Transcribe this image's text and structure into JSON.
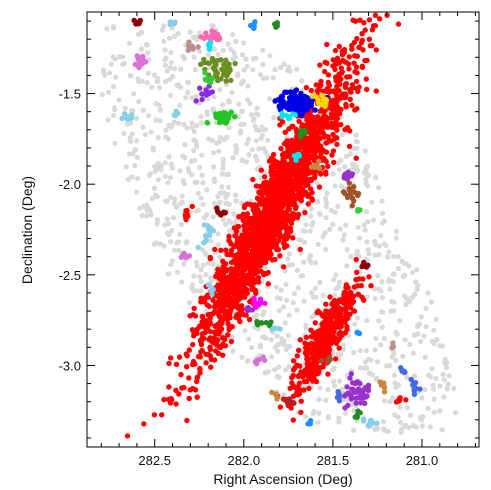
{
  "chart_data": {
    "type": "scatter",
    "title": "",
    "xlabel": "Right Ascension (Deg)",
    "ylabel": "Declination (Deg)",
    "xlim": [
      282.88,
      280.68
    ],
    "ylim": [
      -3.45,
      -1.05
    ],
    "x_ticks": [
      "282.5",
      "282.0",
      "281.5",
      "281.0"
    ],
    "x_tick_values": [
      282.5,
      282.0,
      281.5,
      281.0
    ],
    "y_ticks": [
      "-1.5",
      "-2.0",
      "-2.5",
      "-3.0"
    ],
    "y_tick_values": [
      -1.5,
      -2.0,
      -2.5,
      -3.0
    ],
    "grid": false,
    "legend": "none",
    "background_region": {
      "color": "#d9d9d9",
      "polygon": [
        [
          282.78,
          -1.12
        ],
        [
          282.2,
          -1.1
        ],
        [
          281.7,
          -1.35
        ],
        [
          281.4,
          -1.65
        ],
        [
          281.2,
          -2.05
        ],
        [
          281.02,
          -2.45
        ],
        [
          280.85,
          -2.9
        ],
        [
          280.78,
          -3.35
        ],
        [
          281.25,
          -3.4
        ],
        [
          281.65,
          -3.3
        ],
        [
          282.05,
          -2.95
        ],
        [
          282.4,
          -2.55
        ],
        [
          282.62,
          -2.1
        ],
        [
          282.8,
          -1.55
        ]
      ]
    },
    "series": [
      {
        "color": "#ff0000",
        "center": [
          281.82,
          -2.12
        ],
        "extent": [
          0.3,
          0.88
        ],
        "angle_deg": 62,
        "count": 1900
      },
      {
        "color": "#ff0000",
        "center": [
          281.55,
          -2.86
        ],
        "extent": [
          0.2,
          0.32
        ],
        "angle_deg": 66,
        "count": 420
      },
      {
        "color": "#0000e6",
        "center": [
          281.7,
          -1.55
        ],
        "extent": [
          0.13,
          0.06
        ],
        "angle_deg": 15,
        "count": 110
      },
      {
        "color": "#6b8e23",
        "center": [
          282.15,
          -1.35
        ],
        "extent": [
          0.07,
          0.07
        ],
        "angle_deg": 0,
        "count": 40
      },
      {
        "color": "#22c522",
        "center": [
          282.12,
          -1.63
        ],
        "extent": [
          0.06,
          0.035
        ],
        "angle_deg": 0,
        "count": 30
      },
      {
        "color": "#ff69b4",
        "center": [
          282.16,
          -1.19
        ],
        "extent": [
          0.06,
          0.03
        ],
        "angle_deg": 0,
        "count": 22
      },
      {
        "color": "#8a2be2",
        "center": [
          282.22,
          -1.5
        ],
        "extent": [
          0.035,
          0.04
        ],
        "angle_deg": 0,
        "count": 14
      },
      {
        "color": "#ffd700",
        "center": [
          281.56,
          -1.54
        ],
        "extent": [
          0.03,
          0.03
        ],
        "angle_deg": 0,
        "count": 12
      },
      {
        "color": "#00e5ee",
        "center": [
          281.75,
          -1.62
        ],
        "extent": [
          0.04,
          0.02
        ],
        "angle_deg": 0,
        "count": 8
      },
      {
        "color": "#00e5ee",
        "center": [
          281.7,
          -1.85
        ],
        "extent": [
          0.02,
          0.03
        ],
        "angle_deg": 0,
        "count": 6
      },
      {
        "color": "#a0522d",
        "center": [
          281.4,
          -2.06
        ],
        "extent": [
          0.04,
          0.05
        ],
        "angle_deg": 0,
        "count": 18
      },
      {
        "color": "#9932cc",
        "center": [
          281.42,
          -1.95
        ],
        "extent": [
          0.03,
          0.03
        ],
        "angle_deg": 0,
        "count": 10
      },
      {
        "color": "#cd853f",
        "center": [
          281.57,
          -1.9
        ],
        "extent": [
          0.035,
          0.02
        ],
        "angle_deg": 0,
        "count": 8
      },
      {
        "color": "#228b22",
        "center": [
          281.67,
          -1.72
        ],
        "extent": [
          0.02,
          0.03
        ],
        "angle_deg": 0,
        "count": 8
      },
      {
        "color": "#228b22",
        "center": [
          281.82,
          -1.12
        ],
        "extent": [
          0.015,
          0.02
        ],
        "angle_deg": 0,
        "count": 6
      },
      {
        "color": "#1e90ff",
        "center": [
          281.95,
          -1.13
        ],
        "extent": [
          0.02,
          0.025
        ],
        "angle_deg": 0,
        "count": 8
      },
      {
        "color": "#87ceeb",
        "center": [
          282.4,
          -1.11
        ],
        "extent": [
          0.03,
          0.015
        ],
        "angle_deg": 0,
        "count": 8
      },
      {
        "color": "#8b0000",
        "center": [
          282.6,
          -1.12
        ],
        "extent": [
          0.025,
          0.025
        ],
        "angle_deg": 0,
        "count": 8
      },
      {
        "color": "#da70d6",
        "center": [
          282.58,
          -1.32
        ],
        "extent": [
          0.03,
          0.04
        ],
        "angle_deg": 0,
        "count": 14
      },
      {
        "color": "#87ceeb",
        "center": [
          282.65,
          -1.63
        ],
        "extent": [
          0.03,
          0.025
        ],
        "angle_deg": 0,
        "count": 8
      },
      {
        "color": "#87ceeb",
        "center": [
          282.38,
          -1.62
        ],
        "extent": [
          0.015,
          0.015
        ],
        "angle_deg": 0,
        "count": 5
      },
      {
        "color": "#bc8f8f",
        "center": [
          282.28,
          -1.24
        ],
        "extent": [
          0.03,
          0.02
        ],
        "angle_deg": 0,
        "count": 7
      },
      {
        "color": "#00e5ee",
        "center": [
          282.19,
          -1.23
        ],
        "extent": [
          0.01,
          0.03
        ],
        "angle_deg": 0,
        "count": 6
      },
      {
        "color": "#32cd32",
        "center": [
          282.2,
          -1.42
        ],
        "extent": [
          0.02,
          0.03
        ],
        "angle_deg": 0,
        "count": 8
      },
      {
        "color": "#ff0000",
        "center": [
          282.32,
          -2.17
        ],
        "extent": [
          0.02,
          0.04
        ],
        "angle_deg": 0,
        "count": 10
      },
      {
        "color": "#8b0000",
        "center": [
          282.12,
          -2.15
        ],
        "extent": [
          0.03,
          0.02
        ],
        "angle_deg": 0,
        "count": 8
      },
      {
        "color": "#87ceeb",
        "center": [
          282.2,
          -2.28
        ],
        "extent": [
          0.03,
          0.06
        ],
        "angle_deg": 0,
        "count": 12
      },
      {
        "color": "#da70d6",
        "center": [
          282.34,
          -2.4
        ],
        "extent": [
          0.04,
          0.02
        ],
        "angle_deg": 0,
        "count": 8
      },
      {
        "color": "#87ceeb",
        "center": [
          282.18,
          -2.58
        ],
        "extent": [
          0.02,
          0.03
        ],
        "angle_deg": 0,
        "count": 6
      },
      {
        "color": "#32cd32",
        "center": [
          281.35,
          -2.14
        ],
        "extent": [
          0.03,
          0.01
        ],
        "angle_deg": 0,
        "count": 5
      },
      {
        "color": "#8b0000",
        "center": [
          281.32,
          -2.45
        ],
        "extent": [
          0.02,
          0.02
        ],
        "angle_deg": 0,
        "count": 6
      },
      {
        "color": "#ff00ff",
        "center": [
          281.92,
          -2.66
        ],
        "extent": [
          0.04,
          0.025
        ],
        "angle_deg": 0,
        "count": 14
      },
      {
        "color": "#9932cc",
        "center": [
          281.97,
          -2.69
        ],
        "extent": [
          0.02,
          0.02
        ],
        "angle_deg": 0,
        "count": 6
      },
      {
        "color": "#228b22",
        "center": [
          281.9,
          -2.77
        ],
        "extent": [
          0.035,
          0.02
        ],
        "angle_deg": 0,
        "count": 8
      },
      {
        "color": "#87ceeb",
        "center": [
          281.82,
          -2.8
        ],
        "extent": [
          0.03,
          0.015
        ],
        "angle_deg": 0,
        "count": 5
      },
      {
        "color": "#da70d6",
        "center": [
          281.92,
          -2.97
        ],
        "extent": [
          0.03,
          0.015
        ],
        "angle_deg": 0,
        "count": 6
      },
      {
        "color": "#1e90ff",
        "center": [
          281.36,
          -2.82
        ],
        "extent": [
          0.015,
          0.015
        ],
        "angle_deg": 0,
        "count": 4
      },
      {
        "color": "#a0522d",
        "center": [
          281.52,
          -2.97
        ],
        "extent": [
          0.035,
          0.015
        ],
        "angle_deg": 0,
        "count": 6
      },
      {
        "color": "#9932cc",
        "center": [
          281.37,
          -3.15
        ],
        "extent": [
          0.08,
          0.07
        ],
        "angle_deg": 0,
        "count": 40
      },
      {
        "color": "#4169e1",
        "center": [
          281.47,
          -3.17
        ],
        "extent": [
          0.02,
          0.03
        ],
        "angle_deg": 0,
        "count": 6
      },
      {
        "color": "#4169e1",
        "center": [
          281.11,
          -3.03
        ],
        "extent": [
          0.02,
          0.03
        ],
        "angle_deg": 0,
        "count": 6
      },
      {
        "color": "#4169e1",
        "center": [
          281.04,
          -3.13
        ],
        "extent": [
          0.025,
          0.04
        ],
        "angle_deg": 0,
        "count": 10
      },
      {
        "color": "#bc8f8f",
        "center": [
          281.17,
          -2.89
        ],
        "extent": [
          0.015,
          0.02
        ],
        "angle_deg": 0,
        "count": 4
      },
      {
        "color": "#cd853f",
        "center": [
          281.22,
          -3.12
        ],
        "extent": [
          0.015,
          0.03
        ],
        "angle_deg": 0,
        "count": 5
      },
      {
        "color": "#ff0000",
        "center": [
          281.12,
          -3.19
        ],
        "extent": [
          0.02,
          0.03
        ],
        "angle_deg": 0,
        "count": 6
      },
      {
        "color": "#b22222",
        "center": [
          281.75,
          -3.2
        ],
        "extent": [
          0.03,
          0.02
        ],
        "angle_deg": 0,
        "count": 8
      },
      {
        "color": "#cd853f",
        "center": [
          281.82,
          -3.17
        ],
        "extent": [
          0.015,
          0.03
        ],
        "angle_deg": 0,
        "count": 5
      },
      {
        "color": "#87ceeb",
        "center": [
          281.3,
          -3.32
        ],
        "extent": [
          0.05,
          0.015
        ],
        "angle_deg": 0,
        "count": 10
      },
      {
        "color": "#228b22",
        "center": [
          281.37,
          -3.27
        ],
        "extent": [
          0.02,
          0.015
        ],
        "angle_deg": 0,
        "count": 5
      },
      {
        "color": "#1e90ff",
        "center": [
          281.62,
          -3.31
        ],
        "extent": [
          0.015,
          0.015
        ],
        "angle_deg": 0,
        "count": 3
      }
    ]
  }
}
